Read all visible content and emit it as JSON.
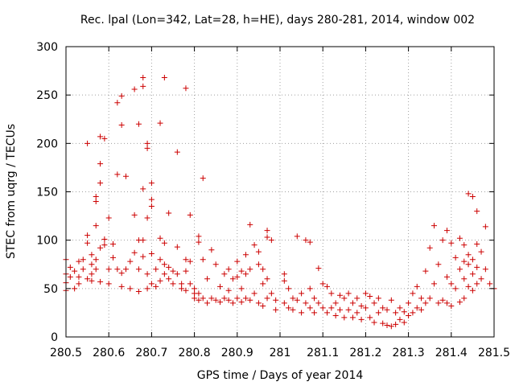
{
  "chart_data": {
    "type": "scatter",
    "title": "Rec. lpal (Lon=342, Lat=28, h=HE), days 280-281, 2014, window 002",
    "xlabel": "GPS time / Days of year 2014",
    "ylabel": "STEC from uqrg / TECUs",
    "xlim": [
      280.5,
      281.5
    ],
    "ylim": [
      0,
      300
    ],
    "xticks": [
      280.5,
      280.6,
      280.7,
      280.8,
      280.9,
      281,
      281.1,
      281.2,
      281.3,
      281.4,
      281.5
    ],
    "xtick_labels": [
      "280.5",
      "280.6",
      "280.7",
      "280.8",
      "280.9",
      "281",
      "281.1",
      "281.2",
      "281.3",
      "281.4",
      "281.5"
    ],
    "yticks": [
      0,
      50,
      100,
      150,
      200,
      250,
      300
    ],
    "ytick_labels": [
      "0",
      "50",
      "100",
      "150",
      "200",
      "250",
      "300"
    ],
    "grid": true,
    "marker": "+",
    "color": "#cc0000",
    "points": [
      [
        280.5,
        80
      ],
      [
        280.5,
        65
      ],
      [
        280.5,
        56
      ],
      [
        280.5,
        48
      ],
      [
        280.51,
        72
      ],
      [
        280.51,
        62
      ],
      [
        280.52,
        68
      ],
      [
        280.52,
        50
      ],
      [
        280.53,
        78
      ],
      [
        280.53,
        62
      ],
      [
        280.53,
        55
      ],
      [
        280.54,
        70
      ],
      [
        280.54,
        80
      ],
      [
        280.55,
        105
      ],
      [
        280.55,
        97
      ],
      [
        280.55,
        200
      ],
      [
        280.55,
        60
      ],
      [
        280.56,
        85
      ],
      [
        280.56,
        75
      ],
      [
        280.56,
        65
      ],
      [
        280.56,
        58
      ],
      [
        280.57,
        145
      ],
      [
        280.57,
        140
      ],
      [
        280.57,
        115
      ],
      [
        280.57,
        80
      ],
      [
        280.57,
        70
      ],
      [
        280.58,
        207
      ],
      [
        280.58,
        179
      ],
      [
        280.58,
        159
      ],
      [
        280.58,
        92
      ],
      [
        280.58,
        57
      ],
      [
        280.59,
        205
      ],
      [
        280.59,
        101
      ],
      [
        280.59,
        95
      ],
      [
        280.6,
        123
      ],
      [
        280.6,
        70
      ],
      [
        280.6,
        55
      ],
      [
        280.61,
        96
      ],
      [
        280.61,
        82
      ],
      [
        280.62,
        242
      ],
      [
        280.62,
        168
      ],
      [
        280.62,
        70
      ],
      [
        280.63,
        249
      ],
      [
        280.63,
        219
      ],
      [
        280.63,
        66
      ],
      [
        280.63,
        52
      ],
      [
        280.64,
        166
      ],
      [
        280.64,
        70
      ],
      [
        280.65,
        78
      ],
      [
        280.65,
        50
      ],
      [
        280.66,
        256
      ],
      [
        280.66,
        126
      ],
      [
        280.66,
        87
      ],
      [
        280.67,
        220
      ],
      [
        280.67,
        100
      ],
      [
        280.67,
        70
      ],
      [
        280.67,
        47
      ],
      [
        280.68,
        268
      ],
      [
        280.68,
        259
      ],
      [
        280.68,
        153
      ],
      [
        280.68,
        100
      ],
      [
        280.68,
        83
      ],
      [
        280.69,
        200
      ],
      [
        280.69,
        195
      ],
      [
        280.69,
        123
      ],
      [
        280.69,
        65
      ],
      [
        280.69,
        50
      ],
      [
        280.7,
        159
      ],
      [
        280.7,
        142
      ],
      [
        280.7,
        135
      ],
      [
        280.7,
        86
      ],
      [
        280.7,
        55
      ],
      [
        280.71,
        70
      ],
      [
        280.71,
        52
      ],
      [
        280.72,
        221
      ],
      [
        280.72,
        102
      ],
      [
        280.72,
        80
      ],
      [
        280.72,
        58
      ],
      [
        280.73,
        268
      ],
      [
        280.73,
        97
      ],
      [
        280.73,
        75
      ],
      [
        280.73,
        65
      ],
      [
        280.74,
        128
      ],
      [
        280.74,
        72
      ],
      [
        280.74,
        60
      ],
      [
        280.75,
        68
      ],
      [
        280.75,
        55
      ],
      [
        280.76,
        191
      ],
      [
        280.76,
        93
      ],
      [
        280.76,
        65
      ],
      [
        280.77,
        55
      ],
      [
        280.77,
        50
      ],
      [
        280.78,
        257
      ],
      [
        280.78,
        80
      ],
      [
        280.78,
        68
      ],
      [
        280.78,
        48
      ],
      [
        280.79,
        126
      ],
      [
        280.79,
        78
      ],
      [
        280.79,
        55
      ],
      [
        280.8,
        50
      ],
      [
        280.8,
        45
      ],
      [
        280.8,
        40
      ],
      [
        280.81,
        104
      ],
      [
        280.81,
        98
      ],
      [
        280.81,
        45
      ],
      [
        280.81,
        38
      ],
      [
        280.82,
        164
      ],
      [
        280.82,
        80
      ],
      [
        280.82,
        40
      ],
      [
        280.83,
        60
      ],
      [
        280.83,
        35
      ],
      [
        280.84,
        90
      ],
      [
        280.84,
        40
      ],
      [
        280.85,
        75
      ],
      [
        280.85,
        38
      ],
      [
        280.86,
        52
      ],
      [
        280.86,
        36
      ],
      [
        280.87,
        65
      ],
      [
        280.87,
        40
      ],
      [
        280.88,
        70
      ],
      [
        280.88,
        48
      ],
      [
        280.88,
        38
      ],
      [
        280.89,
        60
      ],
      [
        280.89,
        35
      ],
      [
        280.9,
        78
      ],
      [
        280.9,
        62
      ],
      [
        280.9,
        40
      ],
      [
        280.91,
        68
      ],
      [
        280.91,
        50
      ],
      [
        280.91,
        36
      ],
      [
        280.92,
        85
      ],
      [
        280.92,
        65
      ],
      [
        280.92,
        40
      ],
      [
        280.93,
        116
      ],
      [
        280.93,
        70
      ],
      [
        280.93,
        38
      ],
      [
        280.94,
        95
      ],
      [
        280.94,
        45
      ],
      [
        280.95,
        88
      ],
      [
        280.95,
        75
      ],
      [
        280.95,
        35
      ],
      [
        280.96,
        70
      ],
      [
        280.96,
        55
      ],
      [
        280.96,
        32
      ],
      [
        280.97,
        110
      ],
      [
        280.97,
        103
      ],
      [
        280.97,
        60
      ],
      [
        280.97,
        40
      ],
      [
        280.98,
        100
      ],
      [
        280.98,
        45
      ],
      [
        280.99,
        38
      ],
      [
        280.99,
        28
      ],
      [
        281.01,
        65
      ],
      [
        281.01,
        58
      ],
      [
        281.01,
        35
      ],
      [
        281.02,
        50
      ],
      [
        281.02,
        30
      ],
      [
        281.03,
        40
      ],
      [
        281.03,
        28
      ],
      [
        281.04,
        104
      ],
      [
        281.04,
        38
      ],
      [
        281.05,
        25
      ],
      [
        281.05,
        45
      ],
      [
        281.06,
        100
      ],
      [
        281.06,
        35
      ],
      [
        281.07,
        98
      ],
      [
        281.07,
        50
      ],
      [
        281.07,
        30
      ],
      [
        281.08,
        40
      ],
      [
        281.08,
        25
      ],
      [
        281.09,
        71
      ],
      [
        281.09,
        35
      ],
      [
        281.1,
        55
      ],
      [
        281.1,
        30
      ],
      [
        281.11,
        52
      ],
      [
        281.11,
        25
      ],
      [
        281.12,
        45
      ],
      [
        281.12,
        30
      ],
      [
        281.13,
        35
      ],
      [
        281.13,
        22
      ],
      [
        281.14,
        43
      ],
      [
        281.14,
        28
      ],
      [
        281.15,
        40
      ],
      [
        281.15,
        20
      ],
      [
        281.16,
        45
      ],
      [
        281.16,
        28
      ],
      [
        281.17,
        35
      ],
      [
        281.17,
        20
      ],
      [
        281.18,
        40
      ],
      [
        281.18,
        25
      ],
      [
        281.19,
        32
      ],
      [
        281.19,
        18
      ],
      [
        281.2,
        45
      ],
      [
        281.2,
        30
      ],
      [
        281.21,
        42
      ],
      [
        281.21,
        20
      ],
      [
        281.22,
        35
      ],
      [
        281.22,
        15
      ],
      [
        281.23,
        40
      ],
      [
        281.23,
        25
      ],
      [
        281.24,
        30
      ],
      [
        281.24,
        14
      ],
      [
        281.25,
        28
      ],
      [
        281.25,
        12
      ],
      [
        281.26,
        38
      ],
      [
        281.26,
        11
      ],
      [
        281.27,
        25
      ],
      [
        281.27,
        13
      ],
      [
        281.28,
        30
      ],
      [
        281.28,
        18
      ],
      [
        281.29,
        26
      ],
      [
        281.29,
        15
      ],
      [
        281.3,
        35
      ],
      [
        281.3,
        22
      ],
      [
        281.31,
        45
      ],
      [
        281.31,
        25
      ],
      [
        281.32,
        52
      ],
      [
        281.32,
        30
      ],
      [
        281.33,
        40
      ],
      [
        281.33,
        28
      ],
      [
        281.34,
        68
      ],
      [
        281.34,
        35
      ],
      [
        281.35,
        92
      ],
      [
        281.35,
        40
      ],
      [
        281.36,
        115
      ],
      [
        281.36,
        55
      ],
      [
        281.37,
        75
      ],
      [
        281.37,
        35
      ],
      [
        281.38,
        100
      ],
      [
        281.38,
        38
      ],
      [
        281.39,
        110
      ],
      [
        281.39,
        62
      ],
      [
        281.39,
        35
      ],
      [
        281.4,
        97
      ],
      [
        281.4,
        55
      ],
      [
        281.4,
        32
      ],
      [
        281.41,
        82
      ],
      [
        281.41,
        50
      ],
      [
        281.42,
        102
      ],
      [
        281.42,
        70
      ],
      [
        281.42,
        36
      ],
      [
        281.43,
        95
      ],
      [
        281.43,
        78
      ],
      [
        281.43,
        60
      ],
      [
        281.43,
        40
      ],
      [
        281.44,
        148
      ],
      [
        281.44,
        85
      ],
      [
        281.44,
        75
      ],
      [
        281.44,
        52
      ],
      [
        281.45,
        145
      ],
      [
        281.45,
        80
      ],
      [
        281.45,
        65
      ],
      [
        281.45,
        48
      ],
      [
        281.46,
        130
      ],
      [
        281.46,
        96
      ],
      [
        281.46,
        72
      ],
      [
        281.46,
        55
      ],
      [
        281.47,
        88
      ],
      [
        281.47,
        60
      ],
      [
        281.48,
        114
      ],
      [
        281.48,
        70
      ],
      [
        281.49,
        55
      ],
      [
        281.5,
        50
      ]
    ]
  }
}
